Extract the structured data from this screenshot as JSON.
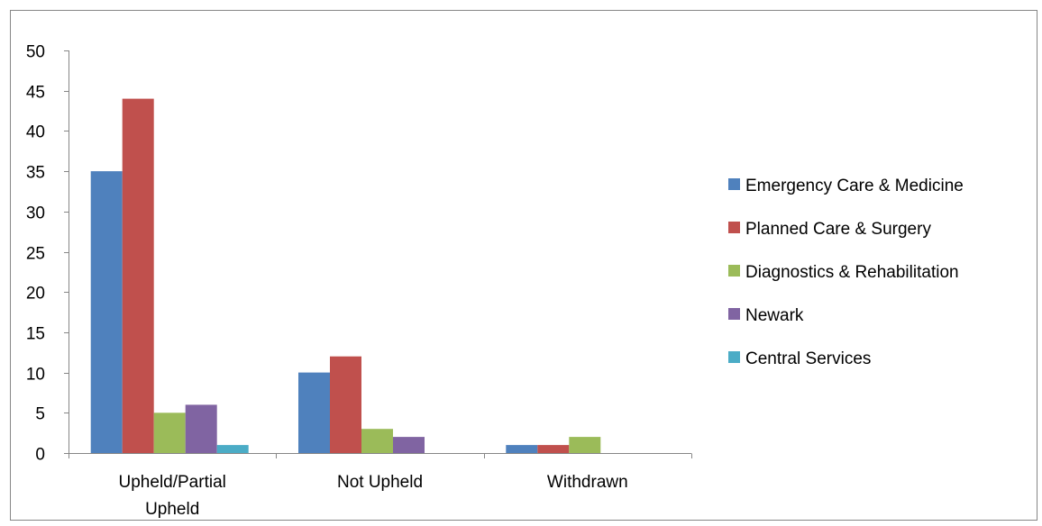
{
  "chart_data": {
    "type": "bar",
    "title": "",
    "xlabel": "",
    "ylabel": "",
    "ylim": [
      0,
      50
    ],
    "yticks": [
      0,
      5,
      10,
      15,
      20,
      25,
      30,
      35,
      40,
      45,
      50
    ],
    "categories": [
      [
        "Upheld/Partial",
        "Upheld"
      ],
      [
        "Not Upheld"
      ],
      [
        "Withdrawn"
      ]
    ],
    "series": [
      {
        "name": "Emergency Care & Medicine",
        "color": "#4F81BD",
        "values": [
          35,
          10,
          1
        ]
      },
      {
        "name": "Planned Care & Surgery",
        "color": "#C0504D",
        "values": [
          44,
          12,
          1
        ]
      },
      {
        "name": "Diagnostics & Rehabilitation",
        "color": "#9BBB59",
        "values": [
          5,
          3,
          2
        ]
      },
      {
        "name": "Newark",
        "color": "#8064A2",
        "values": [
          6,
          2,
          0
        ]
      },
      {
        "name": "Central Services",
        "color": "#4BACC6",
        "values": [
          1,
          0,
          0
        ]
      }
    ],
    "grid": false,
    "legend_position": "right"
  }
}
